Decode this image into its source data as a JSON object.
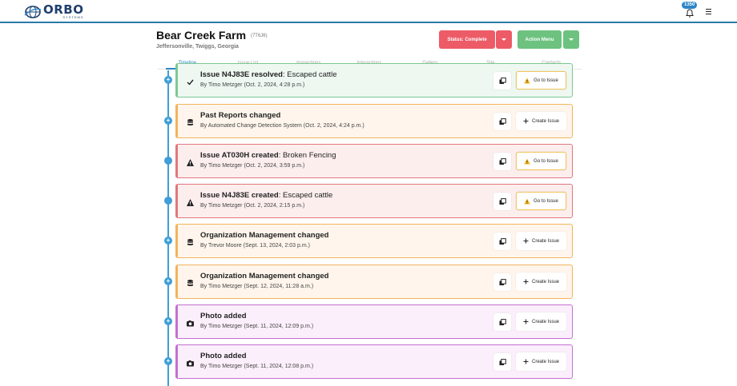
{
  "app": {
    "logo_main": "ORBO",
    "logo_sub": "SYSTEMS",
    "notification_count": "1350"
  },
  "farm": {
    "name": "Bear Creek Farm",
    "code": "(7T6J6)",
    "location": "Jeffersonville, Twiggs, Georgia"
  },
  "buttons": {
    "status": "Status: Complete",
    "action_menu": "Action Menu"
  },
  "tabs": [
    "Timeline",
    "Issue List",
    "Inspections",
    "Interactions",
    "Gallery",
    "Site",
    "Contacts"
  ],
  "events": [
    {
      "color": "green",
      "icon": "check-icon",
      "dot": "plus",
      "title_bold": "Issue N4J83E resolved",
      "title_rest": ": Escaped cattle",
      "byline": "By Timo Metzger (Oct. 2, 2024, 4:28 p.m.)",
      "action": "Go to Issue",
      "action_icon": "warning-icon"
    },
    {
      "color": "orange",
      "icon": "database-icon",
      "dot": "plus",
      "title_bold": "Past Reports changed",
      "title_rest": "",
      "byline": "By Automated Change Detection System (Oct. 2, 2024, 4:24 p.m.)",
      "action": "Create Issue",
      "action_icon": "plus-icon"
    },
    {
      "color": "red",
      "icon": "warning-icon",
      "dot": "filled",
      "title_bold": "Issue AT030H created",
      "title_rest": ": Broken Fencing",
      "byline": "By Timo Metzger (Oct. 2, 2024, 3:59 p.m.)",
      "action": "Go to Issue",
      "action_icon": "warning-icon"
    },
    {
      "color": "red",
      "icon": "warning-icon",
      "dot": "filled",
      "title_bold": "Issue N4J83E created",
      "title_rest": ": Escaped cattle",
      "byline": "By Timo Metzger (Oct. 2, 2024, 2:15 p.m.)",
      "action": "Go to Issue",
      "action_icon": "warning-icon"
    },
    {
      "color": "orange",
      "icon": "database-icon",
      "dot": "plus",
      "title_bold": "Organization Management changed",
      "title_rest": "",
      "byline": "By Trevor Moore (Sept. 13, 2024, 2:03 p.m.)",
      "action": "Create Issue",
      "action_icon": "plus-icon"
    },
    {
      "color": "orange",
      "icon": "database-icon",
      "dot": "plus",
      "title_bold": "Organization Management changed",
      "title_rest": "",
      "byline": "By Timo Metzger (Sept. 12, 2024, 11:28 a.m.)",
      "action": "Create Issue",
      "action_icon": "plus-icon"
    },
    {
      "color": "purple",
      "icon": "camera-icon",
      "dot": "plus",
      "title_bold": "Photo added",
      "title_rest": "",
      "byline": "By Timo Metzger (Sept. 11, 2024, 12:09 p.m.)",
      "action": "Create Issue",
      "action_icon": "plus-icon"
    },
    {
      "color": "purple",
      "icon": "camera-icon",
      "dot": "plus",
      "title_bold": "Photo added",
      "title_rest": "",
      "byline": "By Timo Metzger (Sept. 11, 2024, 12:08 p.m.)",
      "action": "Create Issue",
      "action_icon": "plus-icon"
    }
  ]
}
